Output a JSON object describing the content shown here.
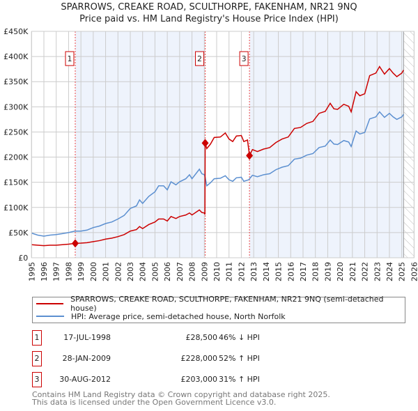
{
  "title": "SPARROWS, CREAKE ROAD, SCULTHORPE, FAKENHAM, NR21 9NQ",
  "subtitle": "Price paid vs. HM Land Registry's House Price Index (HPI)",
  "legend": {
    "red": "SPARROWS, CREAKE ROAD, SCULTHORPE, FAKENHAM, NR21 9NQ (semi-detached house)",
    "blue": "HPI: Average price, semi-detached house, North Norfolk"
  },
  "sales": [
    {
      "num": "1",
      "date": "17-JUL-1998",
      "price": "£28,500",
      "hpi": "46% ↓ HPI"
    },
    {
      "num": "2",
      "date": "28-JAN-2009",
      "price": "£228,000",
      "hpi": "52% ↑ HPI"
    },
    {
      "num": "3",
      "date": "30-AUG-2012",
      "price": "£203,000",
      "hpi": "31% ↑ HPI"
    }
  ],
  "footer": [
    "Contains HM Land Registry data © Crown copyright and database right 2025.",
    "This data is licensed under the Open Government Licence v3.0."
  ],
  "colors": {
    "red": "#cc0000",
    "blue": "#5b8fd0",
    "shade": "#eef3fc"
  },
  "chart_data": {
    "type": "line",
    "xlim": [
      1995,
      2026
    ],
    "ylim": [
      0,
      450000
    ],
    "yticks": [
      0,
      50000,
      100000,
      150000,
      200000,
      250000,
      300000,
      350000,
      400000,
      450000
    ],
    "ytick_labels": [
      "£0",
      "£50K",
      "£100K",
      "£150K",
      "£200K",
      "£250K",
      "£300K",
      "£350K",
      "£400K",
      "£450K"
    ],
    "xticks": [
      "1995",
      "1996",
      "1997",
      "1998",
      "1999",
      "2000",
      "2001",
      "2002",
      "2003",
      "2004",
      "2005",
      "2006",
      "2007",
      "2008",
      "2009",
      "2010",
      "2011",
      "2012",
      "2013",
      "2014",
      "2015",
      "2016",
      "2017",
      "2018",
      "2019",
      "2020",
      "2021",
      "2022",
      "2023",
      "2024",
      "2025",
      "2026"
    ],
    "shaded_ranges": [
      [
        1998.54,
        2009.07
      ],
      [
        2012.66,
        2025.15
      ]
    ],
    "projection_from": 2025.15,
    "sale_points": [
      {
        "label": "1",
        "x": 1998.54,
        "y": 28500
      },
      {
        "label": "2",
        "x": 2009.07,
        "y": 228000
      },
      {
        "label": "3",
        "x": 2012.66,
        "y": 203000
      }
    ],
    "series": [
      {
        "name": "HPI: Average price, semi-detached house, North Norfolk",
        "color": "blue",
        "x": [
          1995.0,
          1995.5,
          1996.0,
          1996.5,
          1997.0,
          1997.5,
          1998.0,
          1998.5,
          1999.0,
          1999.5,
          2000.0,
          2000.5,
          2001.0,
          2001.5,
          2002.0,
          2002.5,
          2003.0,
          2003.5,
          2003.75,
          2004.0,
          2004.5,
          2005.0,
          2005.3,
          2005.7,
          2006.0,
          2006.3,
          2006.7,
          2007.0,
          2007.5,
          2007.8,
          2008.0,
          2008.6,
          2008.8,
          2009.0,
          2009.07,
          2009.2,
          2009.5,
          2009.8,
          2010.3,
          2010.7,
          2011.0,
          2011.3,
          2011.6,
          2012.0,
          2012.2,
          2012.6,
          2012.9,
          2013.3,
          2013.8,
          2014.3,
          2014.8,
          2015.3,
          2015.8,
          2016.3,
          2016.8,
          2017.3,
          2017.8,
          2018.3,
          2018.8,
          2019.2,
          2019.5,
          2019.8,
          2020.3,
          2020.7,
          2020.9,
          2021.3,
          2021.6,
          2022.0,
          2022.4,
          2022.9,
          2023.2,
          2023.6,
          2024.0,
          2024.3,
          2024.6,
          2025.0,
          2025.15
        ],
        "y": [
          49,
          45,
          43,
          45,
          46,
          48,
          50,
          53,
          53,
          55,
          60,
          63,
          68,
          71,
          77,
          84,
          98,
          103,
          115,
          108,
          122,
          131,
          143,
          143,
          135,
          151,
          145,
          151,
          157,
          165,
          157,
          176,
          167,
          165,
          160,
          143,
          149,
          157,
          158,
          163,
          155,
          152,
          159,
          160,
          152,
          155,
          164,
          161,
          165,
          167,
          175,
          180,
          183,
          196,
          198,
          204,
          207,
          219,
          222,
          234,
          226,
          225,
          233,
          230,
          221,
          252,
          246,
          249,
          276,
          280,
          290,
          279,
          287,
          280,
          275,
          280,
          285
        ],
        "y_unit": "£K"
      },
      {
        "name": "SPARROWS, CREAKE ROAD, SCULTHORPE, FAKENHAM, NR21 9NQ (semi-detached house)",
        "color": "red",
        "x": [
          1995.0,
          1995.5,
          1996.0,
          1996.5,
          1997.0,
          1997.5,
          1998.0,
          1998.54,
          1999.0,
          1999.5,
          2000.0,
          2000.5,
          2001.0,
          2001.5,
          2002.0,
          2002.5,
          2003.0,
          2003.5,
          2003.75,
          2004.0,
          2004.5,
          2005.0,
          2005.3,
          2005.7,
          2006.0,
          2006.3,
          2006.7,
          2007.0,
          2007.5,
          2007.8,
          2008.0,
          2008.6,
          2008.8,
          2009.0,
          2009.05,
          2009.07,
          2009.2,
          2009.5,
          2009.8,
          2010.3,
          2010.7,
          2011.0,
          2011.3,
          2011.6,
          2012.0,
          2012.2,
          2012.5,
          2012.66,
          2012.9,
          2013.3,
          2013.8,
          2014.3,
          2014.8,
          2015.3,
          2015.8,
          2016.3,
          2016.8,
          2017.3,
          2017.8,
          2018.3,
          2018.8,
          2019.2,
          2019.5,
          2019.8,
          2020.3,
          2020.7,
          2020.9,
          2021.3,
          2021.6,
          2022.0,
          2022.4,
          2022.9,
          2023.2,
          2023.6,
          2024.0,
          2024.3,
          2024.6,
          2025.0,
          2025.15
        ],
        "y": [
          26,
          25,
          24,
          25,
          25,
          26,
          27,
          28.5,
          29,
          30,
          32,
          34,
          37,
          39,
          42,
          46,
          53,
          56,
          62,
          58,
          66,
          71,
          77,
          77,
          73,
          82,
          78,
          82,
          85,
          89,
          85,
          95,
          90,
          89,
          86,
          228,
          217,
          226,
          239,
          240,
          248,
          236,
          231,
          242,
          243,
          231,
          234,
          203,
          215,
          211,
          216,
          219,
          229,
          236,
          240,
          257,
          259,
          267,
          271,
          287,
          291,
          307,
          296,
          295,
          305,
          301,
          290,
          330,
          322,
          326,
          362,
          367,
          380,
          365,
          376,
          367,
          360,
          367,
          373
        ],
        "y_unit": "£K"
      }
    ]
  }
}
